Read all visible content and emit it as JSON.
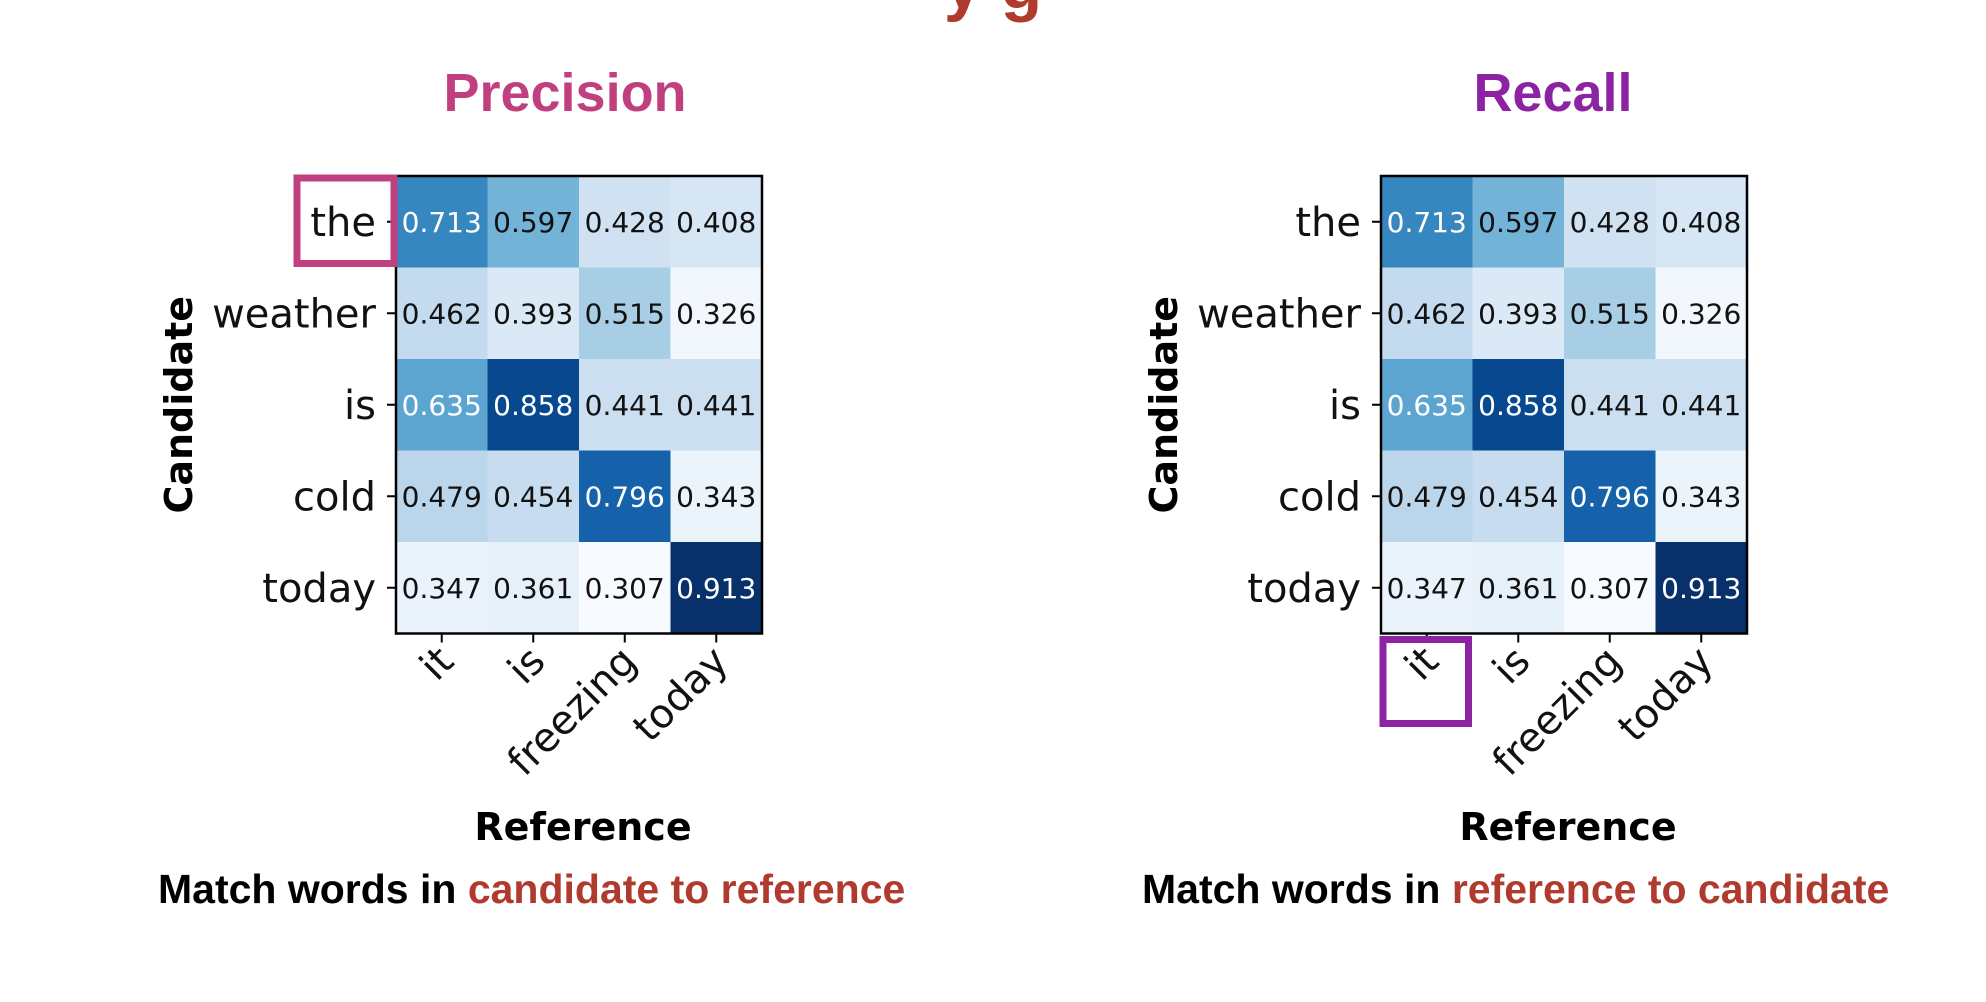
{
  "top_title_fragment": "y  g",
  "colors": {
    "precision": "#c0407f",
    "recall": "#8c23a3",
    "highlight_text": "#b03a2e",
    "cmap_low": "#f7fbff",
    "cmap_high": "#08306b"
  },
  "panels": [
    {
      "title": "Precision",
      "title_color": "#c0407f",
      "caption_prefix": "Match words in ",
      "caption_highlight": "candidate to reference",
      "highlight": {
        "axis": "y",
        "index": 0,
        "color": "#c0407f"
      }
    },
    {
      "title": "Recall",
      "title_color": "#8c23a3",
      "caption_prefix": "Match words in ",
      "caption_highlight": "reference to candidate",
      "highlight": {
        "axis": "x",
        "index": 0,
        "color": "#8c23a3"
      }
    }
  ],
  "chart_data": {
    "type": "heatmap",
    "xlabel": "Reference",
    "ylabel": "Candidate",
    "x": [
      "it",
      "is",
      "freezing",
      "today"
    ],
    "y": [
      "the",
      "weather",
      "is",
      "cold",
      "today"
    ],
    "values": [
      [
        0.713,
        0.597,
        0.428,
        0.408
      ],
      [
        0.462,
        0.393,
        0.515,
        0.326
      ],
      [
        0.635,
        0.858,
        0.441,
        0.441
      ],
      [
        0.479,
        0.454,
        0.796,
        0.343
      ],
      [
        0.347,
        0.361,
        0.307,
        0.913
      ]
    ],
    "vmin": 0.307,
    "vmax": 0.913,
    "colormap": "Blues"
  }
}
